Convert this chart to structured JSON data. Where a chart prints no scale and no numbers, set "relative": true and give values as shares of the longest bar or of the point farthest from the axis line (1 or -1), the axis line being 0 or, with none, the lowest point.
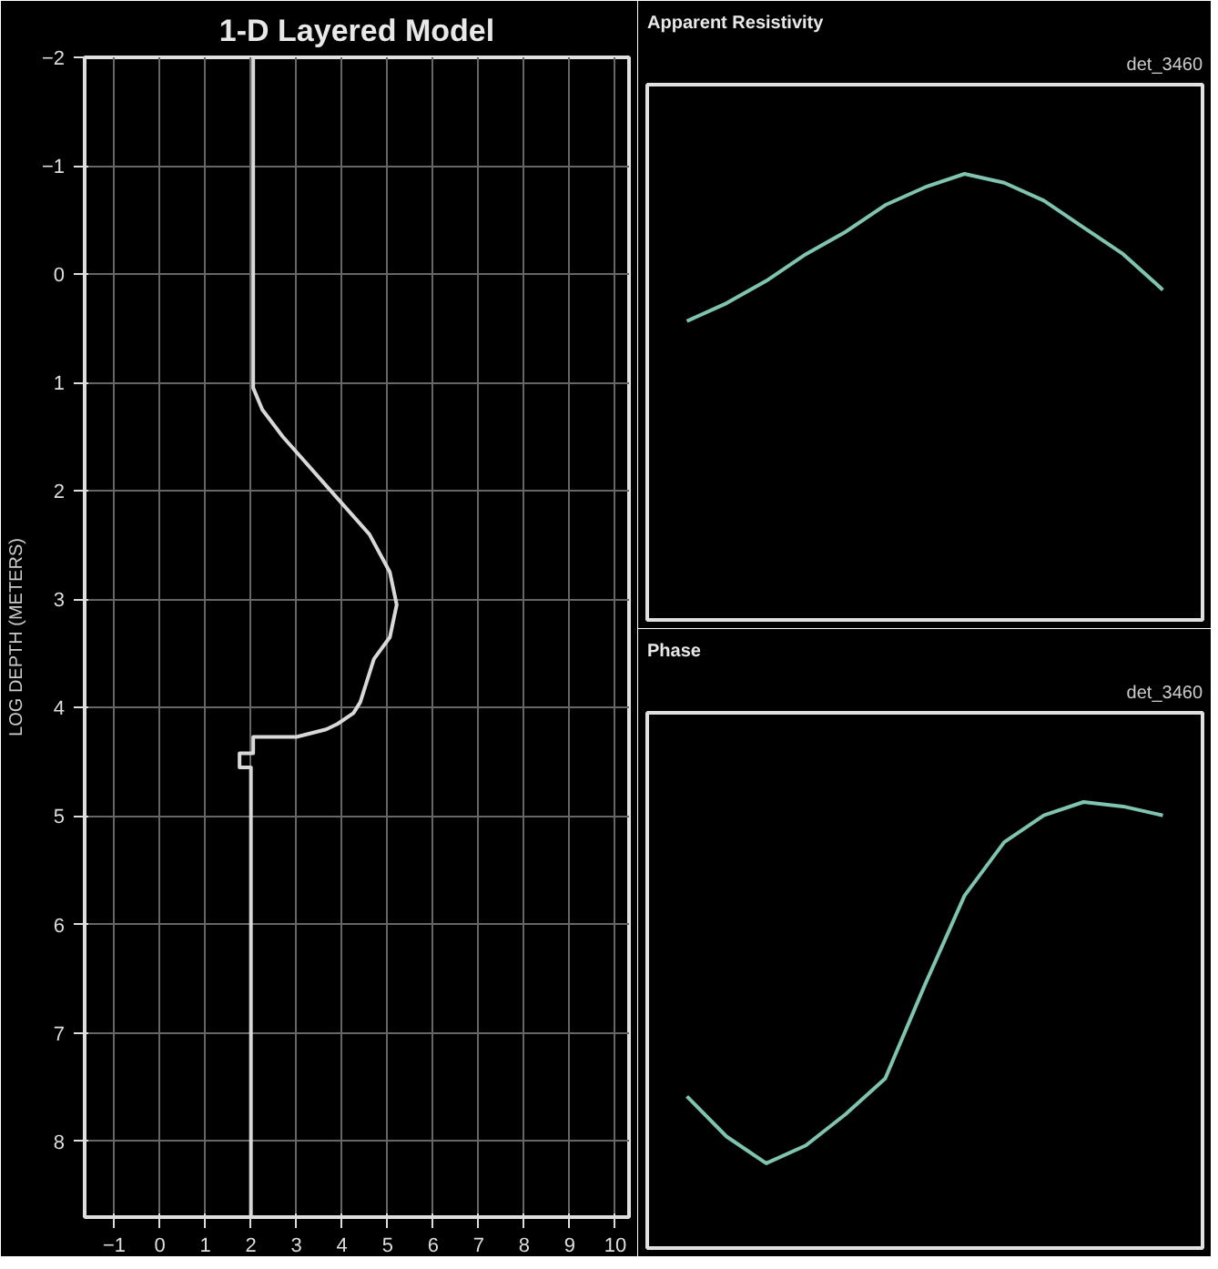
{
  "chart_data": [
    {
      "type": "line",
      "title": "1-D Layered Model",
      "ylabel": "LOG DEPTH (METERS)",
      "x": [
        2.0,
        2.0,
        1.75,
        1.75,
        2.05,
        2.05,
        3.0,
        3.65,
        3.9,
        4.25,
        4.4,
        4.7,
        5.05,
        5.2,
        5.05,
        4.6,
        3.65,
        2.7,
        2.25,
        2.05,
        2.05
      ],
      "series": [
        {
          "color": "#d8d8d8",
          "values": [
            8.7,
            4.55,
            4.55,
            4.42,
            4.42,
            4.27,
            4.27,
            4.2,
            4.15,
            4.05,
            3.95,
            3.55,
            3.35,
            3.05,
            2.75,
            2.4,
            1.95,
            1.5,
            1.25,
            1.05,
            -2.0
          ]
        }
      ],
      "xlim": [
        -1.65,
        10.3
      ],
      "xticks": [
        -1,
        0,
        1,
        2,
        3,
        4,
        5,
        6,
        7,
        8,
        9,
        10
      ],
      "ylim": [
        8.7,
        -2
      ],
      "yticks": [
        -2,
        -1,
        0,
        1,
        2,
        3,
        4,
        5,
        6,
        7,
        8
      ],
      "grid": true
    },
    {
      "type": "line",
      "title": "Apparent Resistivity",
      "relative": true,
      "annotations": [
        "det_3460"
      ],
      "categories": [
        null,
        null,
        null,
        null,
        null,
        null,
        null,
        null,
        null,
        null,
        null,
        null,
        null
      ],
      "series": [
        {
          "color": "#7fc4b0",
          "values": [
            0.67,
            0.71,
            0.76,
            0.82,
            0.87,
            0.93,
            0.97,
            1.0,
            0.98,
            0.94,
            0.88,
            0.82,
            0.74
          ]
        }
      ]
    },
    {
      "type": "line",
      "title": "Phase",
      "relative": true,
      "annotations": [
        "det_3460"
      ],
      "categories": [
        null,
        null,
        null,
        null,
        null,
        null,
        null,
        null,
        null,
        null,
        null,
        null,
        null
      ],
      "series": [
        {
          "color": "#7fc4b0",
          "values": [
            0.34,
            0.25,
            0.19,
            0.23,
            0.3,
            0.38,
            0.59,
            0.79,
            0.91,
            0.97,
            1.0,
            0.99,
            0.97
          ]
        }
      ]
    }
  ]
}
